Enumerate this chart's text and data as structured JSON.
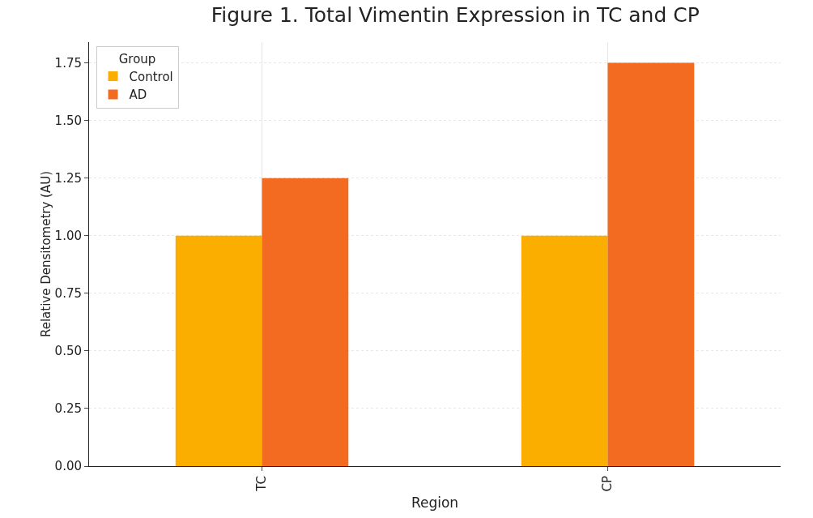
{
  "chart_data": {
    "type": "bar",
    "title": "Figure 1. Total Vimentin Expression in TC and CP",
    "xlabel": "Region",
    "ylabel": "Relative Densitometry (AU)",
    "legend_title": "Group",
    "categories": [
      "TC",
      "CP"
    ],
    "series": [
      {
        "name": "Control",
        "color": "#fbae00",
        "values": [
          1.0,
          1.0
        ]
      },
      {
        "name": "AD",
        "color": "#f26b21",
        "values": [
          1.25,
          1.75
        ]
      }
    ],
    "ylim": [
      0,
      1.84
    ],
    "yticks": [
      {
        "value": 0,
        "label": "0.00"
      },
      {
        "value": 0.25,
        "label": "0.25"
      },
      {
        "value": 0.5,
        "label": "0.50"
      },
      {
        "value": 0.75,
        "label": "0.75"
      },
      {
        "value": 1,
        "label": "1.00"
      },
      {
        "value": 1.25,
        "label": "1.25"
      },
      {
        "value": 1.5,
        "label": "1.50"
      },
      {
        "value": 1.75,
        "label": "1.75"
      }
    ],
    "grid": true,
    "legend": "top left"
  }
}
